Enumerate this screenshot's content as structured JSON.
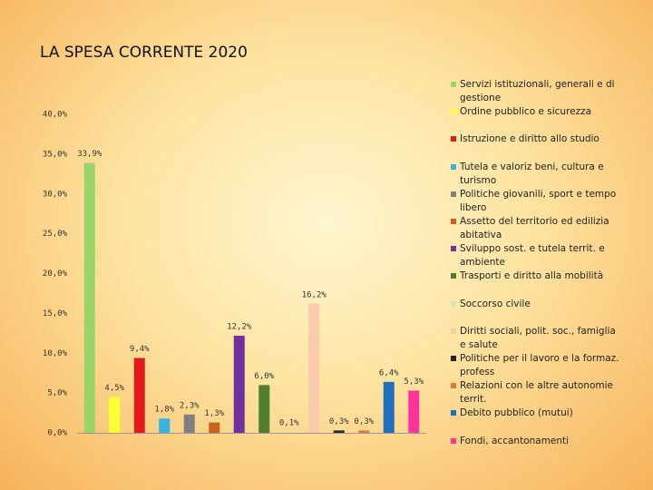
{
  "chart_data": {
    "type": "bar",
    "title": "LA SPESA CORRENTE 2020",
    "categories": [
      "Servizi istituzionali, generali e di gestione",
      "Ordine pubblico e sicurezza",
      "Istruzione e diritto allo studio",
      "Tutela e valoriz beni, cultura e turismo",
      "Politiche giovanili, sport e tempo libero",
      "Assetto del territorio ed edilizia abitativa",
      "Sviluppo sost. e tutela territ. e ambiente",
      "Trasporti e diritto alla mobilità",
      "Soccorso civile",
      "Diritti sociali, polit. soc., famiglia e salute",
      "Politiche per il lavoro e la formaz. profess",
      "Relazioni con le altre autonomie territ.",
      "Debito pubblico (mutui)",
      "Fondi, accantonamenti"
    ],
    "values": [
      33.9,
      4.5,
      9.4,
      1.8,
      2.3,
      1.3,
      12.2,
      6.0,
      0.1,
      16.2,
      0.3,
      0.3,
      6.4,
      5.3
    ],
    "value_labels": [
      "33,9%",
      "4,5%",
      "9,4%",
      "1,8%",
      "2,3%",
      "1,3%",
      "12,2%",
      "6,0%",
      "0,1%",
      "16,2%",
      "0,3%",
      "0,3%",
      "6,4%",
      "5,3%"
    ],
    "colors": [
      "#9bd56a",
      "#ffff33",
      "#e31a1c",
      "#33b5e5",
      "#808080",
      "#c8651b",
      "#7030a0",
      "#4f7f2f",
      "#d7e4bd",
      "#f8cbad",
      "#262626",
      "#e07b39",
      "#1f6fc0",
      "#ff3399"
    ],
    "ylim": [
      0,
      40
    ],
    "yticks": [
      {
        "value": 0,
        "label": "0,0%"
      },
      {
        "value": 5,
        "label": "5,0%"
      },
      {
        "value": 10,
        "label": "10,0%"
      },
      {
        "value": 15,
        "label": "15,0%"
      },
      {
        "value": 20,
        "label": "20,0%"
      },
      {
        "value": 25,
        "label": "25,0%"
      },
      {
        "value": 30,
        "label": "30,0%"
      },
      {
        "value": 35,
        "label": "35,0%"
      },
      {
        "value": 40,
        "label": "40,0%"
      }
    ],
    "grid": false,
    "legend": "right"
  }
}
